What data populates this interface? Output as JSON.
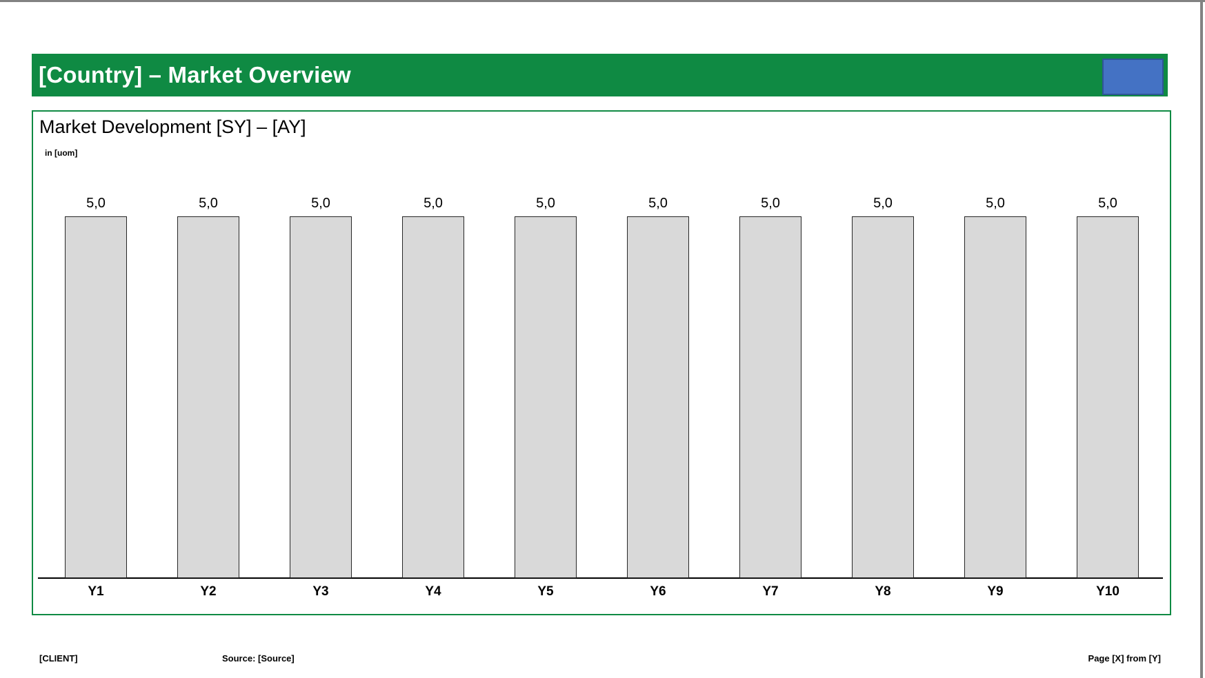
{
  "window": {
    "background": "#FFFFFF",
    "edge_color": "#828282"
  },
  "header": {
    "title": "[Country] – Market Overview",
    "bar_color": "#0F8A43",
    "text_color": "#FFFFFF",
    "logo_placeholder": {
      "fill": "#4472C4",
      "border": "#2F5597"
    }
  },
  "chart_panel": {
    "title": "Market Development [SY] – [AY]",
    "unit_label": "in [uom]",
    "border_color": "#0F8A43"
  },
  "chart_data": {
    "type": "bar",
    "title": "Market Development [SY] – [AY]",
    "categories": [
      "Y1",
      "Y2",
      "Y3",
      "Y4",
      "Y5",
      "Y6",
      "Y7",
      "Y8",
      "Y9",
      "Y10"
    ],
    "values": [
      5.0,
      5.0,
      5.0,
      5.0,
      5.0,
      5.0,
      5.0,
      5.0,
      5.0,
      5.0
    ],
    "value_labels": [
      "5,0",
      "5,0",
      "5,0",
      "5,0",
      "5,0",
      "5,0",
      "5,0",
      "5,0",
      "5,0",
      "5,0"
    ],
    "xlabel": "",
    "ylabel": "in [uom]",
    "ylim": [
      0,
      5.5
    ],
    "grid": false,
    "legend": false,
    "y_axis_visible": false,
    "data_labels_visible": true,
    "decimal_format": "comma",
    "bar_fill": "#D9D9D9",
    "bar_border": "#262626"
  },
  "footer": {
    "client": "[CLIENT]",
    "source": "Source: [Source]",
    "page": "Page [X] from [Y]"
  }
}
